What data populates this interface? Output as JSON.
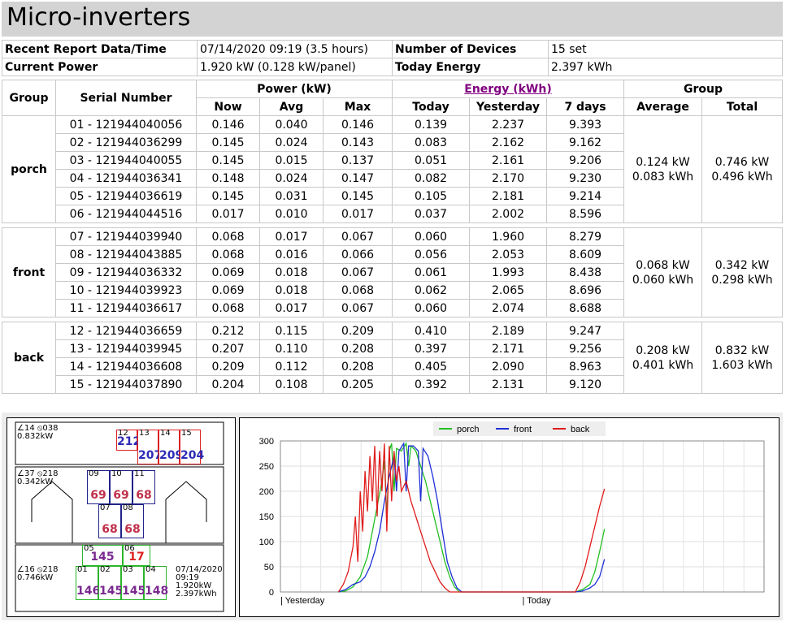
{
  "title": "Micro-inverters",
  "info": {
    "recent_label": "Recent Report Data/Time",
    "recent_value": "07/14/2020 09:19 (3.5 hours)",
    "devices_label": "Number of Devices",
    "devices_value": "15 set",
    "power_label": "Current Power",
    "power_value": "1.920 kW (0.128 kW/panel)",
    "energy_label": "Today Energy",
    "energy_value": "2.397 kWh"
  },
  "table": {
    "h_group": "Group",
    "h_serial": "Serial Number",
    "h_power": "Power (kW)",
    "h_energy": "Energy (kWh)",
    "h_group2": "Group",
    "h_now": "Now",
    "h_avg": "Avg",
    "h_max": "Max",
    "h_today": "Today",
    "h_yesterday": "Yesterday",
    "h_7days": "7 days",
    "h_average": "Average",
    "h_total": "Total",
    "groups": [
      {
        "name": "porch",
        "avg_kw": "0.124 kW",
        "avg_kwh": "0.083 kWh",
        "tot_kw": "0.746 kW",
        "tot_kwh": "0.496 kWh",
        "rows": [
          [
            "01 - 121944040056",
            "0.146",
            "0.040",
            "0.146",
            "0.139",
            "2.237",
            "9.393"
          ],
          [
            "02 - 121944036299",
            "0.145",
            "0.024",
            "0.143",
            "0.083",
            "2.162",
            "9.162"
          ],
          [
            "03 - 121944040055",
            "0.145",
            "0.015",
            "0.137",
            "0.051",
            "2.161",
            "9.206"
          ],
          [
            "04 - 121944036341",
            "0.148",
            "0.024",
            "0.147",
            "0.082",
            "2.170",
            "9.230"
          ],
          [
            "05 - 121944036619",
            "0.145",
            "0.031",
            "0.145",
            "0.105",
            "2.181",
            "9.214"
          ],
          [
            "06 - 121944044516",
            "0.017",
            "0.010",
            "0.017",
            "0.037",
            "2.002",
            "8.596"
          ]
        ]
      },
      {
        "name": "front",
        "avg_kw": "0.068 kW",
        "avg_kwh": "0.060 kWh",
        "tot_kw": "0.342 kW",
        "tot_kwh": "0.298 kWh",
        "rows": [
          [
            "07 - 121944039940",
            "0.068",
            "0.017",
            "0.067",
            "0.060",
            "1.960",
            "8.279"
          ],
          [
            "08 - 121944043885",
            "0.068",
            "0.016",
            "0.066",
            "0.056",
            "2.053",
            "8.609"
          ],
          [
            "09 - 121944036332",
            "0.069",
            "0.018",
            "0.067",
            "0.061",
            "1.993",
            "8.438"
          ],
          [
            "10 - 121944039923",
            "0.069",
            "0.018",
            "0.068",
            "0.062",
            "2.065",
            "8.696"
          ],
          [
            "11 - 121944036617",
            "0.068",
            "0.017",
            "0.067",
            "0.060",
            "2.074",
            "8.688"
          ]
        ]
      },
      {
        "name": "back",
        "avg_kw": "0.208 kW",
        "avg_kwh": "0.401 kWh",
        "tot_kw": "0.832 kW",
        "tot_kwh": "1.603 kWh",
        "rows": [
          [
            "12 - 121944036659",
            "0.212",
            "0.115",
            "0.209",
            "0.410",
            "2.189",
            "9.247"
          ],
          [
            "13 - 121944039945",
            "0.207",
            "0.110",
            "0.208",
            "0.397",
            "2.171",
            "9.256"
          ],
          [
            "14 - 121944036608",
            "0.209",
            "0.112",
            "0.208",
            "0.405",
            "2.090",
            "8.963"
          ],
          [
            "15 - 121944037890",
            "0.204",
            "0.108",
            "0.205",
            "0.392",
            "2.131",
            "9.120"
          ]
        ]
      }
    ]
  },
  "panel_map": {
    "back_orient": "∠14 ⦸038",
    "back_power": "0.832kW",
    "front_orient": "∠37 ⦸218",
    "front_power": "0.342kW",
    "porch_orient": "∠16 ⦸218",
    "porch_power": "0.746kW",
    "stamp_date": "07/14/2020",
    "stamp_time": "09:19",
    "stamp_power": "1.920kW",
    "stamp_energy": "2.397kWh",
    "cells": [
      {
        "n": "12",
        "v": "212",
        "color": "#2b2bb5",
        "border": "#d22"
      },
      {
        "n": "13",
        "v": "207",
        "color": "#2b2bb5",
        "border": "#d22"
      },
      {
        "n": "14",
        "v": "209",
        "color": "#2b2bb5",
        "border": "#d22"
      },
      {
        "n": "15",
        "v": "204",
        "color": "#2b2bb5",
        "border": "#d22"
      },
      {
        "n": "09",
        "v": "69",
        "color": "#c0304a",
        "border": "#22228a"
      },
      {
        "n": "10",
        "v": "69",
        "color": "#c0304a",
        "border": "#22228a"
      },
      {
        "n": "11",
        "v": "68",
        "color": "#c0304a",
        "border": "#22228a"
      },
      {
        "n": "07",
        "v": "68",
        "color": "#c0304a",
        "border": "#22228a"
      },
      {
        "n": "08",
        "v": "68",
        "color": "#c0304a",
        "border": "#22228a"
      },
      {
        "n": "05",
        "v": "145",
        "color": "#7a2a8f",
        "border": "#2cb52c"
      },
      {
        "n": "06",
        "v": "17",
        "color": "#d22",
        "border": "#2cb52c"
      },
      {
        "n": "01",
        "v": "146",
        "color": "#7a2a8f",
        "border": "#2cb52c"
      },
      {
        "n": "02",
        "v": "145",
        "color": "#7a2a8f",
        "border": "#2cb52c"
      },
      {
        "n": "03",
        "v": "145",
        "color": "#7a2a8f",
        "border": "#2cb52c"
      },
      {
        "n": "04",
        "v": "148",
        "color": "#7a2a8f",
        "border": "#2cb52c"
      }
    ]
  },
  "chart_data": {
    "type": "line",
    "y_ticks": [
      "0",
      "50",
      "100",
      "150",
      "200",
      "250",
      "300"
    ],
    "ylim": [
      0,
      300
    ],
    "x_ticks": [
      "| Yesterday",
      "| Today"
    ],
    "grid": true,
    "legend_position": "top",
    "series": [
      {
        "name": "porch",
        "color": "#22c022",
        "points": [
          [
            0.24,
            0
          ],
          [
            0.27,
            2
          ],
          [
            0.3,
            10
          ],
          [
            0.33,
            30
          ],
          [
            0.36,
            70
          ],
          [
            0.38,
            120
          ],
          [
            0.4,
            170
          ],
          [
            0.42,
            220
          ],
          [
            0.43,
            260
          ],
          [
            0.44,
            150
          ],
          [
            0.45,
            280
          ],
          [
            0.46,
            295
          ],
          [
            0.47,
            200
          ],
          [
            0.48,
            285
          ],
          [
            0.5,
            280
          ],
          [
            0.52,
            295
          ],
          [
            0.53,
            250
          ],
          [
            0.54,
            290
          ],
          [
            0.56,
            280
          ],
          [
            0.58,
            250
          ],
          [
            0.6,
            220
          ],
          [
            0.62,
            180
          ],
          [
            0.64,
            140
          ],
          [
            0.66,
            100
          ],
          [
            0.68,
            60
          ],
          [
            0.7,
            30
          ],
          [
            0.72,
            10
          ],
          [
            0.74,
            0
          ],
          [
            1.22,
            0
          ],
          [
            1.25,
            5
          ],
          [
            1.28,
            15
          ],
          [
            1.3,
            40
          ],
          [
            1.32,
            80
          ],
          [
            1.34,
            125
          ]
        ]
      },
      {
        "name": "front",
        "color": "#1d2fd6",
        "points": [
          [
            0.24,
            0
          ],
          [
            0.27,
            5
          ],
          [
            0.3,
            15
          ],
          [
            0.33,
            20
          ],
          [
            0.35,
            30
          ],
          [
            0.37,
            50
          ],
          [
            0.39,
            80
          ],
          [
            0.41,
            120
          ],
          [
            0.43,
            180
          ],
          [
            0.45,
            230
          ],
          [
            0.47,
            270
          ],
          [
            0.48,
            200
          ],
          [
            0.49,
            280
          ],
          [
            0.51,
            295
          ],
          [
            0.52,
            200
          ],
          [
            0.53,
            290
          ],
          [
            0.55,
            290
          ],
          [
            0.57,
            280
          ],
          [
            0.58,
            180
          ],
          [
            0.59,
            285
          ],
          [
            0.61,
            270
          ],
          [
            0.63,
            230
          ],
          [
            0.65,
            180
          ],
          [
            0.67,
            120
          ],
          [
            0.69,
            60
          ],
          [
            0.71,
            30
          ],
          [
            0.73,
            8
          ],
          [
            0.75,
            0
          ],
          [
            1.22,
            0
          ],
          [
            1.25,
            2
          ],
          [
            1.28,
            8
          ],
          [
            1.3,
            15
          ],
          [
            1.32,
            30
          ],
          [
            1.34,
            65
          ]
        ]
      },
      {
        "name": "back",
        "color": "#e01c1c",
        "points": [
          [
            0.24,
            0
          ],
          [
            0.26,
            15
          ],
          [
            0.28,
            40
          ],
          [
            0.3,
            90
          ],
          [
            0.31,
            150
          ],
          [
            0.32,
            60
          ],
          [
            0.33,
            200
          ],
          [
            0.34,
            120
          ],
          [
            0.35,
            240
          ],
          [
            0.36,
            160
          ],
          [
            0.37,
            270
          ],
          [
            0.38,
            180
          ],
          [
            0.39,
            290
          ],
          [
            0.4,
            150
          ],
          [
            0.41,
            280
          ],
          [
            0.42,
            200
          ],
          [
            0.43,
            295
          ],
          [
            0.44,
            120
          ],
          [
            0.45,
            290
          ],
          [
            0.46,
            180
          ],
          [
            0.47,
            280
          ],
          [
            0.48,
            220
          ],
          [
            0.49,
            250
          ],
          [
            0.5,
            200
          ],
          [
            0.52,
            220
          ],
          [
            0.54,
            180
          ],
          [
            0.56,
            150
          ],
          [
            0.58,
            120
          ],
          [
            0.6,
            90
          ],
          [
            0.62,
            60
          ],
          [
            0.64,
            40
          ],
          [
            0.66,
            20
          ],
          [
            0.68,
            8
          ],
          [
            0.7,
            0
          ],
          [
            1.22,
            0
          ],
          [
            1.24,
            20
          ],
          [
            1.26,
            50
          ],
          [
            1.28,
            90
          ],
          [
            1.3,
            130
          ],
          [
            1.32,
            170
          ],
          [
            1.34,
            205
          ]
        ]
      }
    ]
  }
}
